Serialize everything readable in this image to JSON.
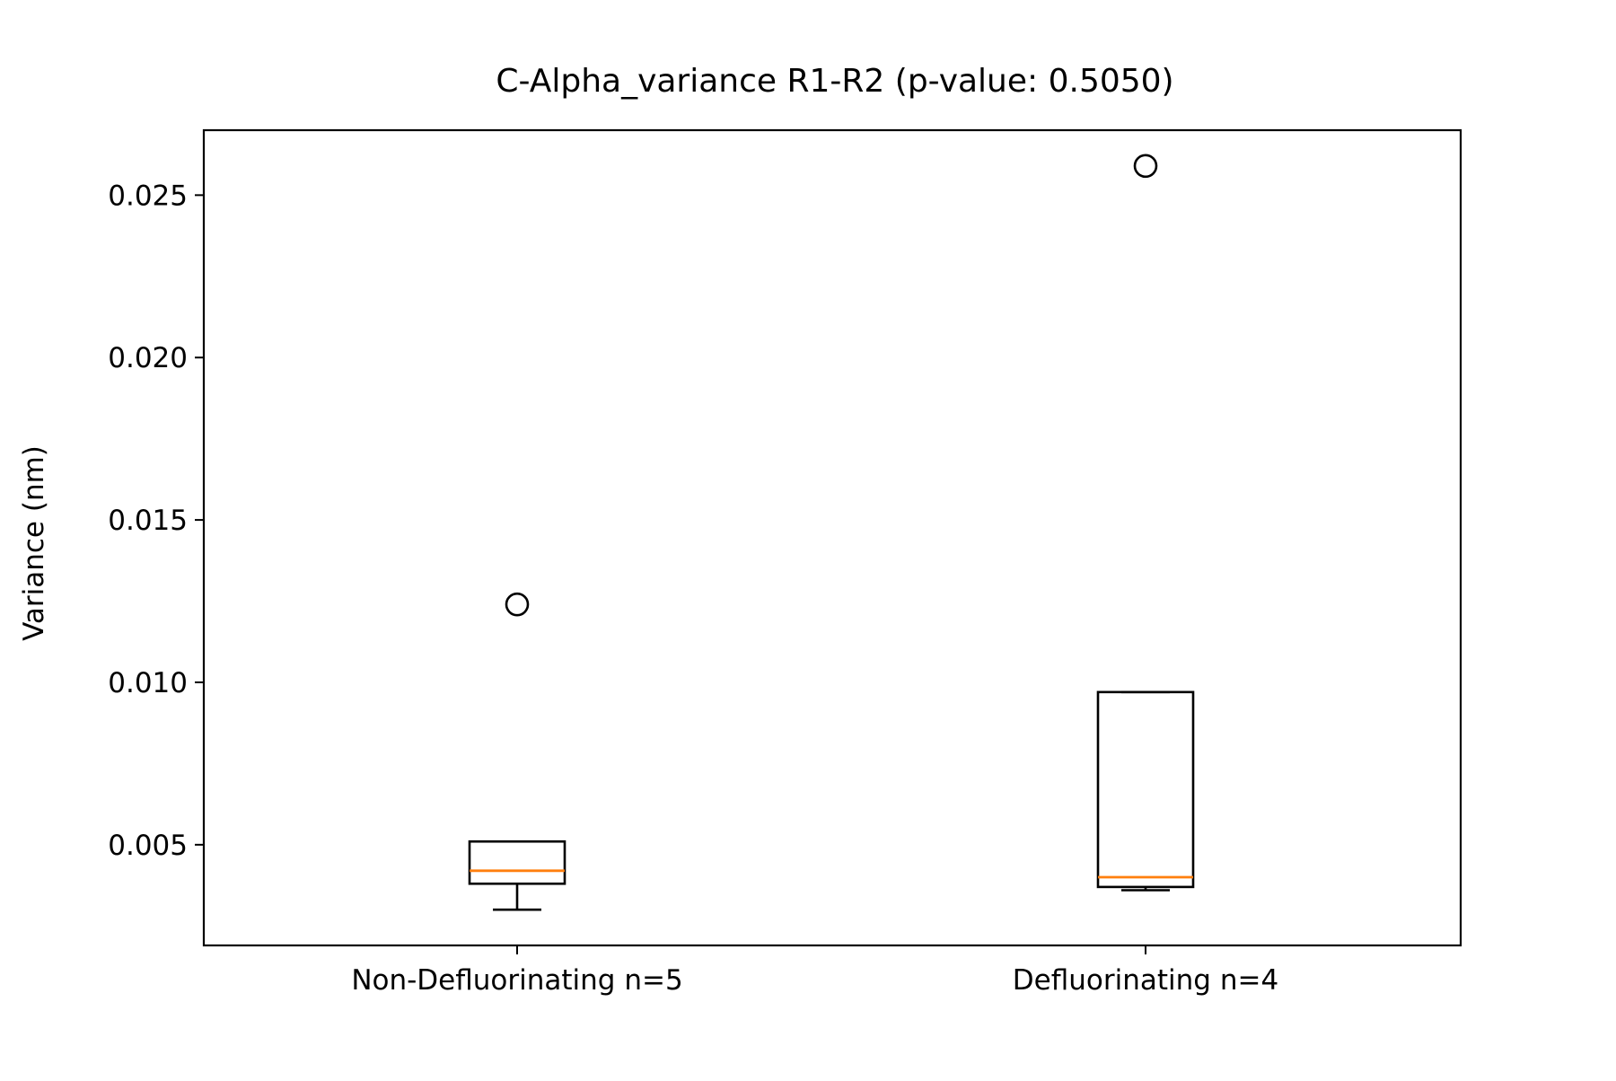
{
  "chart_data": {
    "type": "box",
    "title": "C-Alpha_variance R1-R2 (p-value: 0.5050)",
    "xlabel": "",
    "ylabel": "Variance (nm)",
    "ylim": [
      0.0019,
      0.027
    ],
    "yticks": [
      {
        "value": 0.005,
        "label": "0.005"
      },
      {
        "value": 0.01,
        "label": "0.010"
      },
      {
        "value": 0.015,
        "label": "0.015"
      },
      {
        "value": 0.02,
        "label": "0.020"
      },
      {
        "value": 0.025,
        "label": "0.025"
      }
    ],
    "grid": false,
    "categories": [
      "Non-Defluorinating n=5",
      "Defluorinating n=4"
    ],
    "boxes": [
      {
        "label": "Non-Defluorinating n=5",
        "whisker_low": 0.003,
        "q1": 0.0038,
        "median": 0.0042,
        "q3": 0.0051,
        "whisker_high": 0.0051,
        "outliers": [
          0.0124
        ]
      },
      {
        "label": "Defluorinating n=4",
        "whisker_low": 0.0036,
        "q1": 0.0037,
        "median": 0.004,
        "q3": 0.0097,
        "whisker_high": 0.0097,
        "outliers": [
          0.0259
        ]
      }
    ],
    "colors": {
      "box": "#000000",
      "median": "#ff7f0e",
      "outlier": "#000000"
    }
  }
}
